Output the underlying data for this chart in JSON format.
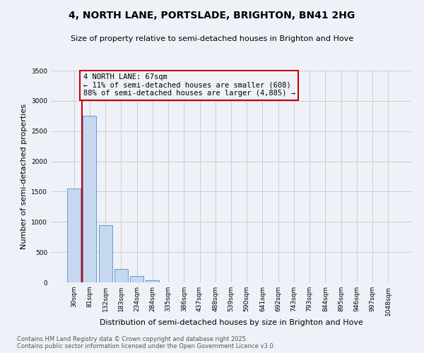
{
  "title1": "4, NORTH LANE, PORTSLADE, BRIGHTON, BN41 2HG",
  "title2": "Size of property relative to semi-detached houses in Brighton and Hove",
  "xlabel": "Distribution of semi-detached houses by size in Brighton and Hove",
  "ylabel": "Number of semi-detached properties",
  "categories": [
    "30sqm",
    "81sqm",
    "132sqm",
    "183sqm",
    "234sqm",
    "284sqm",
    "335sqm",
    "386sqm",
    "437sqm",
    "488sqm",
    "539sqm",
    "590sqm",
    "641sqm",
    "692sqm",
    "743sqm",
    "793sqm",
    "844sqm",
    "895sqm",
    "946sqm",
    "997sqm",
    "1048sqm"
  ],
  "values": [
    1550,
    2750,
    950,
    220,
    100,
    40,
    5,
    0,
    0,
    0,
    0,
    0,
    0,
    0,
    0,
    0,
    0,
    0,
    0,
    0,
    0
  ],
  "bar_color": "#c5d8f0",
  "bar_edge_color": "#6699cc",
  "annotation_box_text": "4 NORTH LANE: 67sqm\n← 11% of semi-detached houses are smaller (608)\n88% of semi-detached houses are larger (4,885) →",
  "annotation_box_color": "#cc0000",
  "red_line_color": "#cc0000",
  "ylim": [
    0,
    3500
  ],
  "yticks": [
    0,
    500,
    1000,
    1500,
    2000,
    2500,
    3000,
    3500
  ],
  "grid_color": "#cccccc",
  "bg_color": "#eef2f8",
  "footer1": "Contains HM Land Registry data © Crown copyright and database right 2025.",
  "footer2": "Contains public sector information licensed under the Open Government Licence v3.0."
}
